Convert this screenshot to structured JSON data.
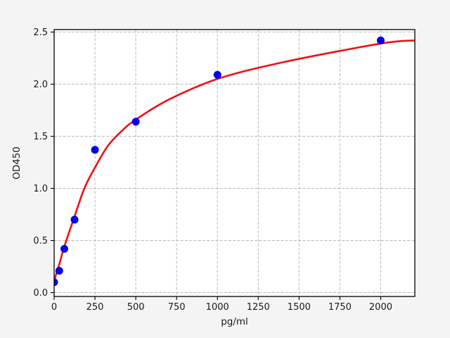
{
  "figure": {
    "background": "#f4f4f4",
    "plot_background": "#ffffff"
  },
  "chart_data": {
    "type": "scatter",
    "title": "",
    "xlabel": "pg/ml",
    "ylabel": "OD450",
    "xlim": [
      0,
      2209
    ],
    "ylim": [
      -0.037,
      2.524
    ],
    "grid": true,
    "grid_style": "dashed",
    "legend": "none",
    "x_ticks": {
      "values": [
        0,
        250,
        500,
        750,
        1000,
        1250,
        1500,
        1750,
        2000
      ],
      "labels": [
        "0",
        "250",
        "500",
        "750",
        "1000",
        "1250",
        "1500",
        "1750",
        "2000"
      ]
    },
    "y_ticks": {
      "values": [
        0.0,
        0.5,
        1.0,
        1.5,
        2.0,
        2.5
      ],
      "labels": [
        "0.0",
        "0.5",
        "1.0",
        "1.5",
        "2.0",
        "2.5"
      ]
    },
    "series": [
      {
        "name": "standard-points",
        "type": "scatter",
        "marker": "circle",
        "marker_radius": 5.5,
        "color": "#0000ee",
        "x": [
          0,
          31.25,
          62.5,
          125,
          250,
          500,
          1000,
          2000
        ],
        "y": [
          0.1,
          0.21,
          0.42,
          0.7,
          1.37,
          1.64,
          2.09,
          2.42
        ]
      },
      {
        "name": "fit-curve",
        "type": "line",
        "color": "#ee1111",
        "line_width": 2.6,
        "x": [
          0,
          31,
          62,
          125,
          185,
          250,
          330,
          420,
          500,
          700,
          1000,
          1400,
          2000,
          2209
        ],
        "y": [
          0.115,
          0.27,
          0.44,
          0.73,
          1.0,
          1.2,
          1.41,
          1.56,
          1.66,
          1.85,
          2.05,
          2.21,
          2.39,
          2.42
        ]
      }
    ],
    "colors": {
      "grid": "#b9b9b9",
      "axis": "#000000",
      "text": "#1a1a1a"
    }
  }
}
